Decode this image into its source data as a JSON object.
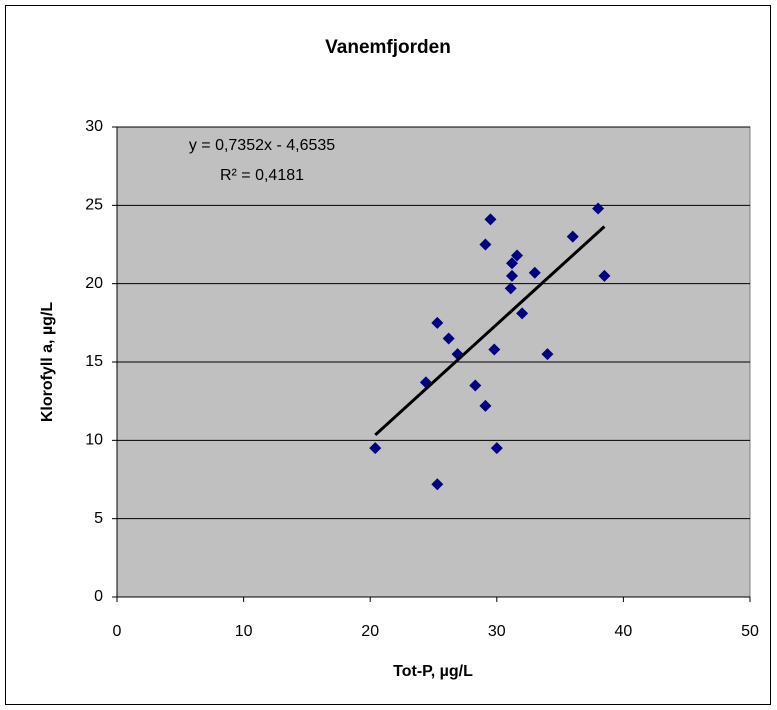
{
  "chart_data": {
    "type": "scatter",
    "title": "Vanemfjorden",
    "x_label": "Tot-P, µg/L",
    "y_label": "Klorofyll a, µg/L",
    "series": [
      {
        "color": "#000080",
        "x": [
          20.4,
          25.3,
          24.4,
          25.3,
          26.2,
          26.9,
          28.3,
          29.1,
          29.1,
          29.5,
          29.8,
          30.0,
          31.1,
          31.2,
          31.2,
          31.6,
          32.0,
          33.0,
          34.0,
          36.0,
          38.0,
          38.5
        ],
        "values": [
          9.5,
          7.2,
          13.7,
          17.5,
          16.5,
          15.5,
          13.5,
          12.2,
          22.5,
          24.1,
          15.8,
          9.5,
          19.7,
          20.5,
          21.3,
          21.8,
          18.1,
          20.7,
          15.5,
          23.0,
          24.8,
          20.5
        ]
      }
    ],
    "trendline": {
      "slope": 0.7352,
      "intercept": -4.6535,
      "equation": "y = 0,7352x - 4,6535",
      "r2": "R² = 0,4181"
    },
    "xlim": [
      0,
      50
    ],
    "xticks": [
      0,
      10,
      20,
      30,
      40,
      50
    ],
    "ylim": [
      0,
      30
    ],
    "yticks": [
      0,
      5,
      10,
      15,
      20,
      25,
      30
    ],
    "grid": true,
    "plot_background": "#c0c0c0"
  }
}
